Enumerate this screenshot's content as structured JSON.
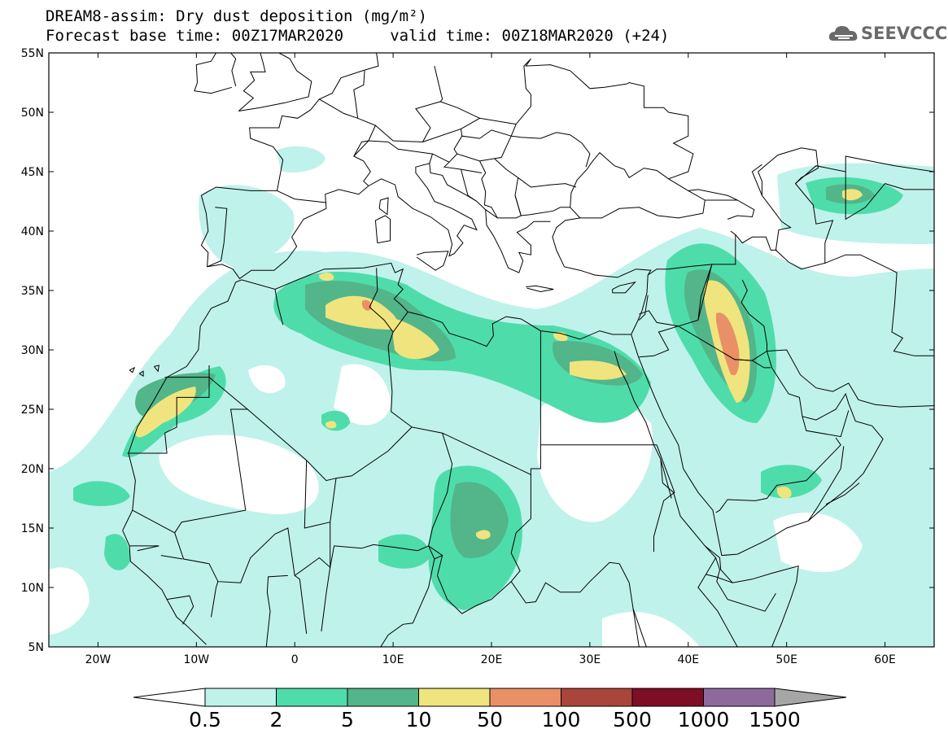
{
  "header": {
    "title_line1": "DREAM8-assim: Dry dust deposition (mg/m²)",
    "title_line2": "Forecast base time: 00Z17MAR2020     valid time: 00Z18MAR2020 (+24)",
    "logo_text": "SEEVCCC"
  },
  "map": {
    "lon_range": [
      -25,
      65
    ],
    "lat_range": [
      5,
      55
    ],
    "lat_labels": [
      "55N",
      "50N",
      "45N",
      "40N",
      "35N",
      "30N",
      "25N",
      "20N",
      "15N",
      "10N",
      "5N"
    ],
    "lon_labels": [
      "20W",
      "10W",
      "0",
      "10E",
      "20E",
      "30E",
      "40E",
      "50E",
      "60E"
    ]
  },
  "colorbar": {
    "labels": [
      "0.5",
      "2",
      "5",
      "10",
      "50",
      "100",
      "500",
      "1000",
      "1500"
    ],
    "colors": [
      "#bff2ea",
      "#4fdcab",
      "#53b58a",
      "#f0e47e",
      "#ea9066",
      "#a9453a",
      "#7d0e26",
      "#8e6a9c"
    ],
    "under_color": "#ffffff",
    "over_color": "#a6a6a6"
  }
}
